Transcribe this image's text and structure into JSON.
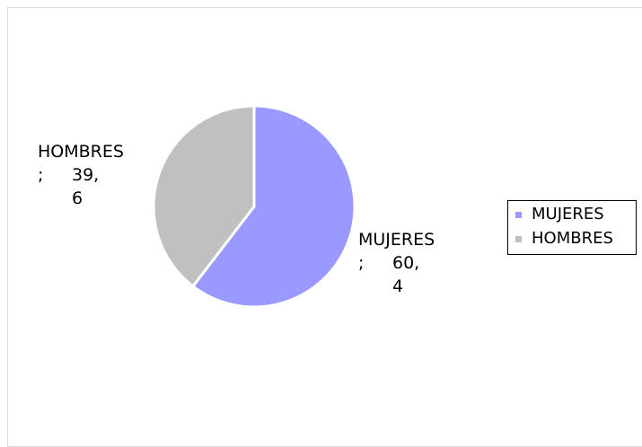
{
  "chart_data": {
    "type": "pie",
    "categories": [
      "MUJERES",
      "HOMBRES"
    ],
    "values": [
      60.4,
      39.6
    ],
    "value_labels": [
      "60,4",
      "39,6"
    ],
    "label_separator": ";",
    "colors": [
      "#9999ff",
      "#c0c0c0"
    ],
    "legend": "right"
  }
}
